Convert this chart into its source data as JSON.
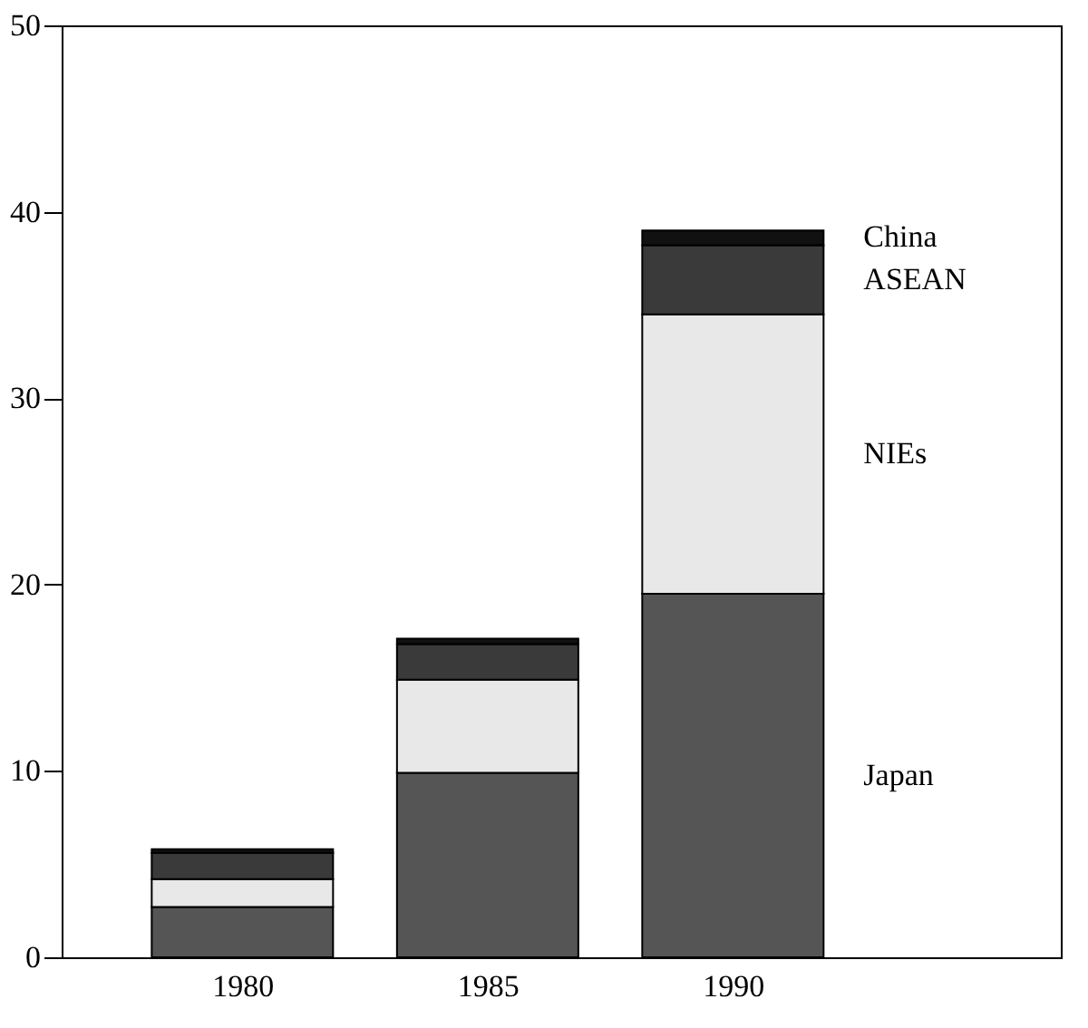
{
  "chart_data": {
    "type": "bar",
    "stacked": true,
    "categories": [
      "1980",
      "1985",
      "1990"
    ],
    "series": [
      {
        "name": "Japan",
        "color": "#555555",
        "values": [
          2.7,
          9.9,
          19.5
        ]
      },
      {
        "name": "NIEs",
        "color": "#e8e8e8",
        "values": [
          1.5,
          5.0,
          15.0
        ]
      },
      {
        "name": "ASEAN",
        "color": "#3a3a3a",
        "values": [
          1.4,
          1.9,
          3.7
        ]
      },
      {
        "name": "China",
        "color": "#111111",
        "values": [
          0.2,
          0.3,
          0.8
        ]
      }
    ],
    "ylim": [
      0,
      50
    ],
    "yticks": [
      0,
      10,
      20,
      30,
      40,
      50
    ],
    "grid": false,
    "legend": false
  }
}
